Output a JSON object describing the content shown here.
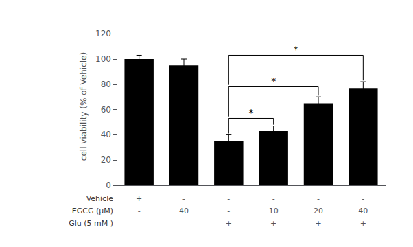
{
  "chart_data": {
    "type": "bar",
    "categories": [
      null,
      null,
      null,
      null,
      null,
      null
    ],
    "values": [
      100,
      95,
      35,
      43,
      65,
      77
    ],
    "errors": [
      3,
      5,
      5,
      4,
      5,
      5
    ],
    "color": "#000000",
    "ylabel": "cell viability (% of Vehicle)",
    "ylim": [
      0,
      125
    ],
    "yticks": [
      0,
      20,
      40,
      60,
      80,
      100,
      120
    ],
    "grid": false,
    "annotations": [
      {
        "x1": 2,
        "x2": 3,
        "y": 53,
        "y1": 41,
        "y2": 48,
        "label": "*"
      },
      {
        "x1": 2,
        "x2": 4,
        "y": 78,
        "y1": 54.5,
        "y2": 71,
        "label": "*"
      },
      {
        "x1": 2,
        "x2": 5,
        "y": 103,
        "y1": 79.5,
        "y2": 83,
        "label": "*"
      }
    ],
    "table": {
      "row_labels": [
        "Vehicle",
        "EGCG (μM)",
        "Glu (5 mM )"
      ],
      "rows": [
        [
          "+",
          "-",
          "-",
          "-",
          "-",
          "-"
        ],
        [
          "-",
          "40",
          "-",
          "10",
          "20",
          "40"
        ],
        [
          "-",
          "-",
          "+",
          "+",
          "+",
          "+"
        ]
      ]
    }
  }
}
